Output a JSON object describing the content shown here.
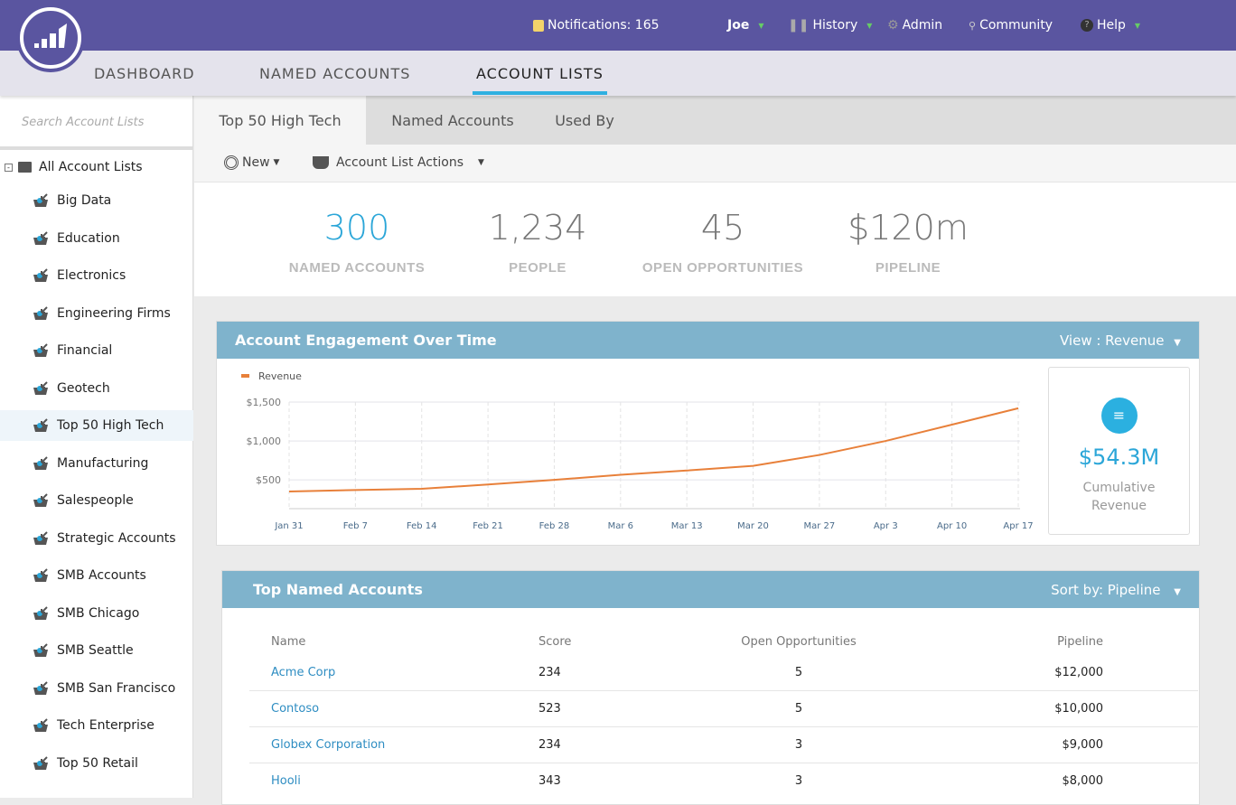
{
  "topbar": {
    "notifications": "Notifications: 165",
    "user": "Joe",
    "history": "History",
    "admin": "Admin",
    "community": "Community",
    "help": "Help"
  },
  "nav": {
    "tabs": [
      "DASHBOARD",
      "NAMED ACCOUNTS",
      "ACCOUNT LISTS"
    ],
    "active": 2
  },
  "sidebar": {
    "search_placeholder": "Search Account Lists",
    "root": "All Account Lists",
    "items": [
      "Big Data",
      "Education",
      "Electronics",
      "Engineering Firms",
      "Financial",
      "Geotech",
      "Top 50 High Tech",
      "Manufacturing",
      "Salespeople",
      "Strategic Accounts",
      "SMB Accounts",
      "SMB Chicago",
      "SMB Seattle",
      "SMB San Francisco",
      "Tech Enterprise",
      "Top 50 Retail"
    ],
    "selected": 6
  },
  "tabs": [
    "Top 50 High Tech",
    "Named Accounts",
    "Used By"
  ],
  "toolbar": {
    "new": "New",
    "actions": "Account List Actions"
  },
  "stats": [
    {
      "value": "300",
      "label": "NAMED ACCOUNTS"
    },
    {
      "value": "1,234",
      "label": "PEOPLE"
    },
    {
      "value": "45",
      "label": "OPEN OPPORTUNITIES"
    },
    {
      "value": "$120m",
      "label": "PIPELINE"
    }
  ],
  "engagement": {
    "title": "Account Engagement Over Time",
    "view": "View : Revenue",
    "cumulative_value": "$54.3M",
    "cumulative_label": "Cumulative Revenue"
  },
  "chart_data": {
    "type": "line",
    "x": [
      "Jan 31",
      "Feb 7",
      "Feb 14",
      "Feb 21",
      "Feb 28",
      "Mar 6",
      "Mar 13",
      "Mar 20",
      "Mar 27",
      "Apr 3",
      "Apr 10",
      "Apr 17"
    ],
    "series": [
      {
        "name": "Revenue",
        "color": "#e8803a",
        "values": [
          350,
          370,
          385,
          440,
          500,
          565,
          620,
          680,
          820,
          1000,
          1210,
          1420
        ]
      }
    ],
    "yticks": [
      "$500",
      "$1,000",
      "$1,500"
    ],
    "ytick_values": [
      500,
      1000,
      1500
    ],
    "ylim": [
      130,
      1500
    ],
    "legend": "top-left"
  },
  "top_accounts": {
    "title": "Top Named Accounts",
    "sort": "Sort by: Pipeline",
    "columns": [
      "Name",
      "Score",
      "Open Opportunities",
      "Pipeline"
    ],
    "rows": [
      [
        "Acme Corp",
        "234",
        "5",
        "$12,000"
      ],
      [
        "Contoso",
        "523",
        "5",
        "$10,000"
      ],
      [
        "Globex Corporation",
        "234",
        "3",
        "$9,000"
      ],
      [
        "Hooli",
        "343",
        "3",
        "$8,000"
      ]
    ]
  }
}
